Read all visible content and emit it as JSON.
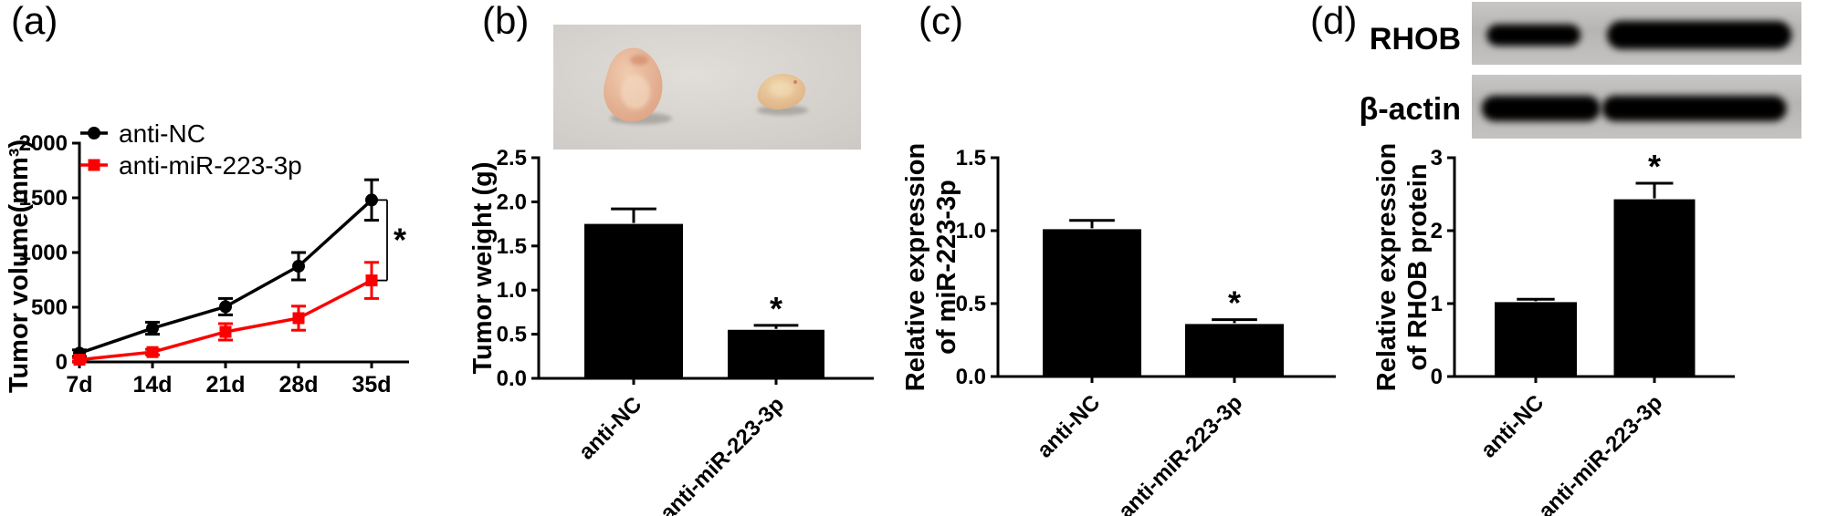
{
  "figure": {
    "panels": [
      {
        "id": "a",
        "label": "(a)"
      },
      {
        "id": "b",
        "label": "(b)"
      },
      {
        "id": "c",
        "label": "(c)"
      },
      {
        "id": "d",
        "label": "(d)"
      }
    ]
  },
  "colors": {
    "black": "#000000",
    "accent_red": "#fb0000",
    "photo_background": "#cdc9c5",
    "blot_strip_gray": "#b7b5b3"
  },
  "chart_data": [
    {
      "id": "tumor-volume-line",
      "panel": "a",
      "type": "line",
      "title": "",
      "xlabel": "",
      "ylabel": "Tumor volume(mm³)",
      "categories": [
        "7d",
        "14d",
        "21d",
        "28d",
        "35d"
      ],
      "ylim": [
        0,
        2000
      ],
      "yticks": [
        "0",
        "500",
        "1000",
        "1500",
        "2000"
      ],
      "grid": false,
      "legend_position": "top-left-inside",
      "series": [
        {
          "name": "anti-NC",
          "color": "#000000",
          "marker": "circle",
          "values": [
            80,
            308,
            505,
            875,
            1480
          ],
          "errors": [
            30,
            55,
            75,
            125,
            185
          ]
        },
        {
          "name": "anti-miR-223-3p",
          "color": "#fb0000",
          "marker": "square",
          "values": [
            20,
            90,
            275,
            400,
            745
          ],
          "errors": [
            15,
            25,
            75,
            110,
            165
          ]
        }
      ],
      "significance": {
        "label": "*",
        "at_category": "35d",
        "between_series": [
          "anti-NC",
          "anti-miR-223-3p"
        ]
      }
    },
    {
      "id": "tumor-weight-bar",
      "panel": "b",
      "type": "bar",
      "ylabel_lines": [
        "Tumor weight (g)"
      ],
      "categories": [
        "anti-NC",
        "anti-miR-223-3p"
      ],
      "values": [
        1.75,
        0.55
      ],
      "errors": [
        0.17,
        0.05
      ],
      "ylim": [
        0,
        2.5
      ],
      "yticks": [
        "0.0",
        "0.5",
        "1.0",
        "1.5",
        "2.0",
        "2.5"
      ],
      "bar_color": "#000000",
      "significance": {
        "label": "*",
        "bar_index": 1
      }
    },
    {
      "id": "mir-expression-bar",
      "panel": "c",
      "type": "bar",
      "ylabel_lines": [
        "Relative expression",
        "of miR-223-3p"
      ],
      "categories": [
        "anti-NC",
        "anti-miR-223-3p"
      ],
      "values": [
        1.01,
        0.36
      ],
      "errors": [
        0.06,
        0.03
      ],
      "ylim": [
        0,
        1.5
      ],
      "yticks": [
        "0.0",
        "0.5",
        "1.0",
        "1.5"
      ],
      "bar_color": "#000000",
      "significance": {
        "label": "*",
        "bar_index": 1
      }
    },
    {
      "id": "rhob-protein-bar",
      "panel": "d",
      "type": "bar",
      "ylabel_lines": [
        "Relative expression",
        "of RHOB protein"
      ],
      "categories": [
        "anti-NC",
        "anti-miR-223-3p"
      ],
      "values": [
        1.02,
        2.43
      ],
      "errors": [
        0.04,
        0.22
      ],
      "ylim": [
        0,
        3
      ],
      "yticks": [
        "0",
        "1",
        "2",
        "3"
      ],
      "bar_color": "#000000",
      "significance": {
        "label": "*",
        "bar_index": 1
      }
    }
  ],
  "photo": {
    "background": "#cdc9c5",
    "tumors": [
      {
        "position": "left",
        "size": "larger",
        "fill": "#dda284"
      },
      {
        "position": "right",
        "size": "smaller",
        "fill": "#dcae82"
      }
    ]
  },
  "western_blot": {
    "rows": [
      {
        "label": "RHOB",
        "bands": [
          {
            "lane": "anti-NC",
            "intensity": "medium",
            "x": 0.045,
            "w": 0.285,
            "h": 0.34
          },
          {
            "lane": "anti-miR-223-3p",
            "intensity": "strong",
            "x": 0.41,
            "w": 0.56,
            "h": 0.45
          }
        ]
      },
      {
        "label": "β-actin",
        "bands": [
          {
            "lane": "anti-NC",
            "intensity": "strong",
            "x": 0.03,
            "w": 0.36,
            "h": 0.4
          },
          {
            "lane": "anti-miR-223-3p",
            "intensity": "strong",
            "x": 0.395,
            "w": 0.56,
            "h": 0.4
          }
        ]
      }
    ]
  }
}
